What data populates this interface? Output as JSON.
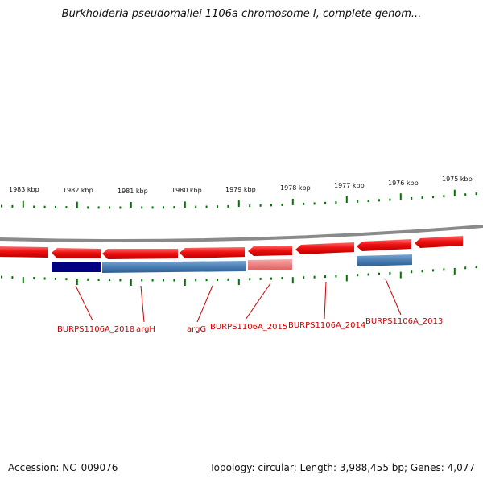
{
  "title": "Burkholderia pseudomallei 1106a chromosome I, complete genom...",
  "ruler": {
    "labels": [
      "1983 kbp",
      "1982 kbp",
      "1981 kbp",
      "1980 kbp",
      "1979 kbp",
      "1978 kbp",
      "1977 kbp",
      "1976 kbp",
      "1975 kbp"
    ]
  },
  "genes": [
    {
      "label": "BURPS1106A_2018"
    },
    {
      "label": "argH"
    },
    {
      "label": "argG"
    },
    {
      "label": "BURPS1106A_2015"
    },
    {
      "label": "BURPS1106A_2014"
    },
    {
      "label": "BURPS1106A_2013"
    }
  ],
  "footer": {
    "accession": "Accession: NC_009076",
    "summary": "Topology: circular; Length: 3,988,455 bp; Genes: 4,077"
  },
  "colors": {
    "gene_arrow": "#ee1111",
    "cds_navy": "#000080",
    "cds_steelblue": "#4a7fb5",
    "cds_pink": "#ee8080",
    "tick_green": "#007700",
    "backbone_gray": "#888888",
    "label_red": "#cc0000"
  }
}
